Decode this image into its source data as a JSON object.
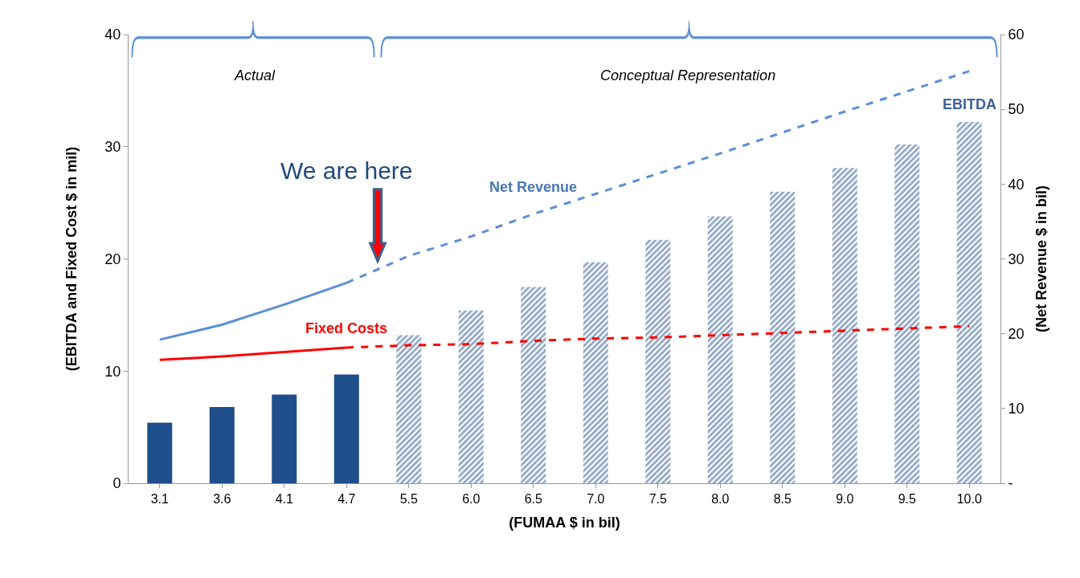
{
  "chart_data": {
    "type": "bar",
    "categories": [
      "3.1",
      "3.6",
      "4.1",
      "4.7",
      "5.5",
      "6.0",
      "6.5",
      "7.0",
      "7.5",
      "8.0",
      "8.5",
      "9.0",
      "9.5",
      "10.0"
    ],
    "xlabel": "(FUMAA $ in bil)",
    "ylabel": "(EBITDA and Fixed Cost $ in mil)",
    "y2label": "(Net Revenue $ in bil)",
    "series": [
      {
        "color": "#1f4e8c",
        "values": [
          5.4,
          6.8,
          7.9,
          9.7,
          null,
          null,
          null,
          null,
          null,
          null,
          null,
          null,
          null,
          null
        ]
      },
      {
        "name": "EBITDA",
        "color": "#1f4e8c",
        "values": [
          null,
          null,
          null,
          null,
          13.2,
          15.4,
          17.5,
          19.7,
          21.7,
          23.8,
          26.0,
          28.1,
          30.2,
          32.2
        ]
      },
      {
        "type": "line",
        "axis": "y2",
        "color": "#5b8fd6",
        "line_style": "solid",
        "values": [
          19.2,
          21.2,
          23.9,
          26.8,
          null,
          null,
          null,
          null,
          null,
          null,
          null,
          null,
          null,
          null
        ]
      },
      {
        "type": "line",
        "axis": "y2",
        "name": "Net Revenue",
        "color": "#5b8fd6",
        "line_style": "dashed",
        "values": [
          null,
          null,
          null,
          26.8,
          30.4,
          33.0,
          36.0,
          38.7,
          41.4,
          44.1,
          46.9,
          49.7,
          52.4,
          55.1
        ]
      },
      {
        "type": "line",
        "name": "Fixed Costs",
        "color": "#ff0000",
        "line_style": "solid",
        "values": [
          11.0,
          11.3,
          11.7,
          12.1,
          null,
          null,
          null,
          null,
          null,
          null,
          null,
          null,
          null,
          null
        ]
      },
      {
        "type": "line",
        "color": "#ff0000",
        "line_style": "dashed",
        "values": [
          null,
          null,
          null,
          12.1,
          12.3,
          12.4,
          12.7,
          12.9,
          13.0,
          13.2,
          13.4,
          13.6,
          13.8,
          14.0
        ]
      }
    ],
    "ylim": [
      0,
      40
    ],
    "yticks": [
      0,
      10,
      20,
      30,
      40
    ],
    "y2lim": [
      0,
      60
    ],
    "y2ticks": [
      {
        "value": 0,
        "label": "-"
      },
      10,
      20,
      30,
      40,
      50,
      60
    ],
    "annotations": [
      "Actual",
      "Conceptual Representation",
      "We are here"
    ],
    "legend": false,
    "marker": "none"
  }
}
